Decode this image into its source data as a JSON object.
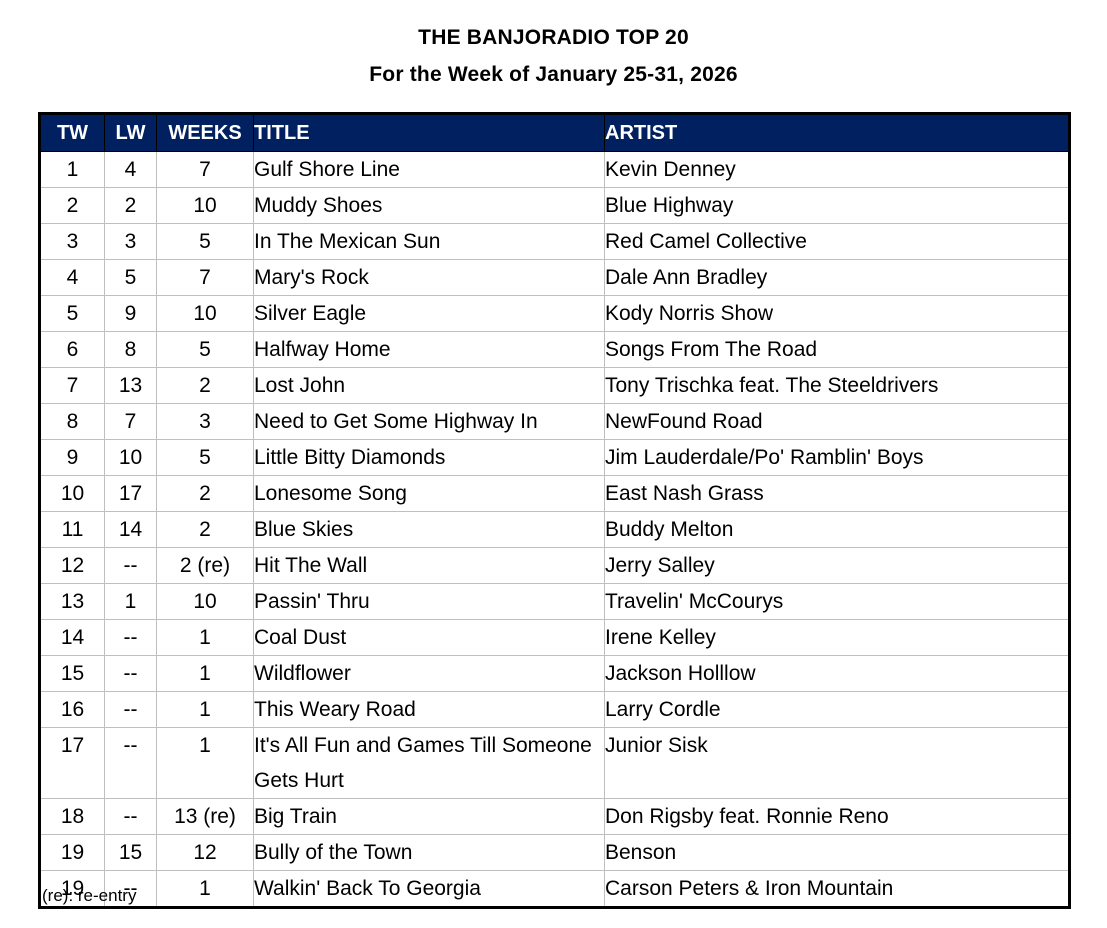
{
  "page_title": "THE BANJORADIO TOP 20",
  "page_subtitle": "For the Week of January 25-31, 2026",
  "footnote": "(re): re-entry",
  "colors": {
    "header_bg": "#002060",
    "header_text": "#ffffff",
    "gridline": "#bfbfbf",
    "outer_border": "#000000",
    "body_bg": "#ffffff",
    "text": "#000000"
  },
  "chart_data": {
    "type": "table",
    "title": "THE BANJORADIO TOP 20",
    "subtitle": "For the Week of January 25-31, 2026",
    "columns": [
      "TW",
      "LW",
      "WEEKS",
      "TITLE",
      "ARTIST"
    ],
    "rows": [
      [
        "1",
        "4",
        "7",
        "Gulf Shore Line",
        "Kevin Denney"
      ],
      [
        "2",
        "2",
        "10",
        "Muddy Shoes",
        "Blue Highway"
      ],
      [
        "3",
        "3",
        "5",
        "In The Mexican Sun",
        "Red Camel Collective"
      ],
      [
        "4",
        "5",
        "7",
        "Mary's Rock",
        "Dale Ann Bradley"
      ],
      [
        "5",
        "9",
        "10",
        "Silver Eagle",
        "Kody Norris Show"
      ],
      [
        "6",
        "8",
        "5",
        "Halfway Home",
        "Songs From The Road"
      ],
      [
        "7",
        "13",
        "2",
        "Lost John",
        "Tony Trischka feat. The Steeldrivers"
      ],
      [
        "8",
        "7",
        "3",
        "Need to Get Some Highway In",
        "NewFound Road"
      ],
      [
        "9",
        "10",
        "5",
        "Little Bitty Diamonds",
        "Jim Lauderdale/Po' Ramblin' Boys"
      ],
      [
        "10",
        "17",
        "2",
        "Lonesome Song",
        "East Nash Grass"
      ],
      [
        "11",
        "14",
        "2",
        "Blue Skies",
        "Buddy Melton"
      ],
      [
        "12",
        "--",
        "2 (re)",
        "Hit The Wall",
        "Jerry Salley"
      ],
      [
        "13",
        "1",
        "10",
        "Passin' Thru",
        "Travelin' McCourys"
      ],
      [
        "14",
        "--",
        "1",
        "Coal Dust",
        "Irene Kelley"
      ],
      [
        "15",
        "--",
        "1",
        "Wildflower",
        "Jackson Holllow"
      ],
      [
        "16",
        "--",
        "1",
        "This Weary Road",
        "Larry Cordle"
      ],
      [
        "17",
        "--",
        "1",
        "It's All Fun and Games Till Someone Gets Hurt",
        "Junior Sisk"
      ],
      [
        "18",
        "--",
        "13 (re)",
        "Big Train",
        "Don Rigsby feat. Ronnie Reno"
      ],
      [
        "19",
        "15",
        "12",
        "Bully of the Town",
        "Benson"
      ],
      [
        "19",
        "--",
        "1",
        "Walkin' Back To Georgia",
        "Carson Peters & Iron Mountain"
      ]
    ],
    "column_alignments": [
      "center",
      "center",
      "center",
      "left",
      "left"
    ],
    "legend_note": "(re): re-entry"
  }
}
